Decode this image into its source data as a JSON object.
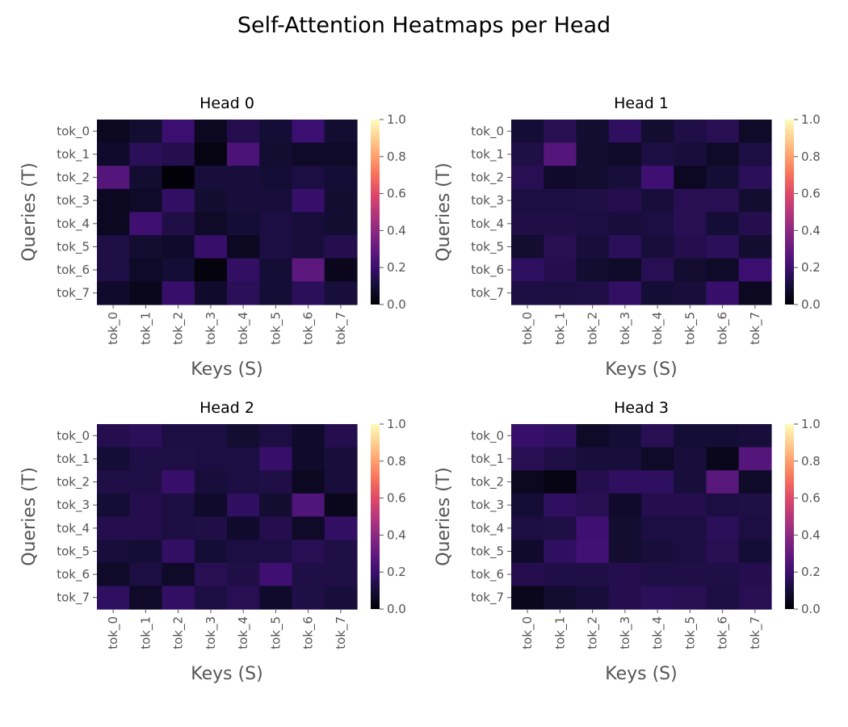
{
  "figure": {
    "title": "Self-Attention Heatmaps per Head"
  },
  "chart_data": {
    "type": "heatmap",
    "colormap": "magma",
    "vmin": 0.0,
    "vmax": 1.0,
    "colorbar_ticks": [
      "0.0",
      "0.2",
      "0.4",
      "0.6",
      "0.8",
      "1.0"
    ],
    "xlabel": "Keys (S)",
    "ylabel": "Queries (T)",
    "x_tokens": [
      "tok_0",
      "tok_1",
      "tok_2",
      "tok_3",
      "tok_4",
      "tok_5",
      "tok_6",
      "tok_7"
    ],
    "y_tokens": [
      "tok_0",
      "tok_1",
      "tok_2",
      "tok_3",
      "tok_4",
      "tok_5",
      "tok_6",
      "tok_7"
    ],
    "heads": [
      {
        "title": "Head 0",
        "values": [
          [
            0.06,
            0.09,
            0.2,
            0.06,
            0.14,
            0.1,
            0.2,
            0.09
          ],
          [
            0.08,
            0.16,
            0.14,
            0.03,
            0.24,
            0.09,
            0.07,
            0.07
          ],
          [
            0.26,
            0.09,
            0.01,
            0.11,
            0.11,
            0.1,
            0.12,
            0.1
          ],
          [
            0.06,
            0.07,
            0.18,
            0.09,
            0.11,
            0.11,
            0.19,
            0.09
          ],
          [
            0.06,
            0.21,
            0.13,
            0.07,
            0.1,
            0.12,
            0.11,
            0.09
          ],
          [
            0.13,
            0.09,
            0.08,
            0.19,
            0.06,
            0.12,
            0.11,
            0.14
          ],
          [
            0.13,
            0.07,
            0.1,
            0.02,
            0.18,
            0.1,
            0.28,
            0.05
          ],
          [
            0.08,
            0.05,
            0.19,
            0.08,
            0.16,
            0.1,
            0.16,
            0.11
          ]
        ]
      },
      {
        "title": "Head 1",
        "values": [
          [
            0.1,
            0.15,
            0.09,
            0.17,
            0.09,
            0.13,
            0.15,
            0.07
          ],
          [
            0.13,
            0.26,
            0.09,
            0.07,
            0.12,
            0.11,
            0.07,
            0.12
          ],
          [
            0.15,
            0.08,
            0.09,
            0.11,
            0.21,
            0.06,
            0.1,
            0.16
          ],
          [
            0.12,
            0.12,
            0.13,
            0.14,
            0.11,
            0.15,
            0.15,
            0.09
          ],
          [
            0.13,
            0.13,
            0.12,
            0.11,
            0.12,
            0.15,
            0.1,
            0.14
          ],
          [
            0.09,
            0.15,
            0.11,
            0.16,
            0.11,
            0.14,
            0.16,
            0.09
          ],
          [
            0.17,
            0.14,
            0.09,
            0.07,
            0.15,
            0.09,
            0.07,
            0.2
          ],
          [
            0.12,
            0.12,
            0.13,
            0.18,
            0.1,
            0.11,
            0.19,
            0.06
          ]
        ]
      },
      {
        "title": "Head 2",
        "values": [
          [
            0.14,
            0.16,
            0.12,
            0.12,
            0.09,
            0.12,
            0.08,
            0.14
          ],
          [
            0.1,
            0.13,
            0.13,
            0.12,
            0.12,
            0.19,
            0.08,
            0.11
          ],
          [
            0.13,
            0.13,
            0.19,
            0.11,
            0.12,
            0.13,
            0.06,
            0.11
          ],
          [
            0.1,
            0.14,
            0.12,
            0.08,
            0.17,
            0.09,
            0.25,
            0.05
          ],
          [
            0.14,
            0.14,
            0.12,
            0.13,
            0.08,
            0.14,
            0.07,
            0.18
          ],
          [
            0.11,
            0.1,
            0.18,
            0.1,
            0.12,
            0.12,
            0.15,
            0.13
          ],
          [
            0.07,
            0.12,
            0.07,
            0.15,
            0.13,
            0.21,
            0.13,
            0.13
          ],
          [
            0.17,
            0.07,
            0.18,
            0.12,
            0.15,
            0.08,
            0.13,
            0.11
          ]
        ]
      },
      {
        "title": "Head 3",
        "values": [
          [
            0.19,
            0.17,
            0.07,
            0.1,
            0.15,
            0.1,
            0.1,
            0.11
          ],
          [
            0.15,
            0.13,
            0.11,
            0.11,
            0.07,
            0.11,
            0.05,
            0.26
          ],
          [
            0.06,
            0.03,
            0.14,
            0.17,
            0.17,
            0.11,
            0.27,
            0.07
          ],
          [
            0.1,
            0.17,
            0.15,
            0.08,
            0.14,
            0.14,
            0.12,
            0.13
          ],
          [
            0.12,
            0.13,
            0.21,
            0.09,
            0.12,
            0.12,
            0.16,
            0.12
          ],
          [
            0.08,
            0.17,
            0.22,
            0.09,
            0.11,
            0.12,
            0.15,
            0.1
          ],
          [
            0.14,
            0.13,
            0.13,
            0.14,
            0.13,
            0.13,
            0.13,
            0.14
          ],
          [
            0.05,
            0.09,
            0.11,
            0.14,
            0.16,
            0.15,
            0.12,
            0.15
          ]
        ]
      }
    ]
  }
}
